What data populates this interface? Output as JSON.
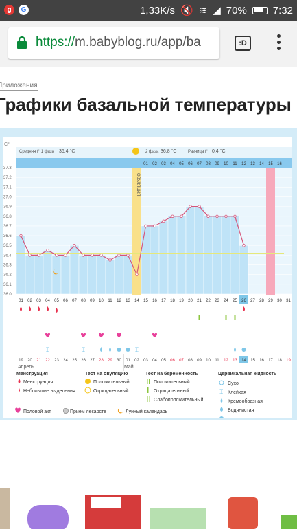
{
  "status_bar": {
    "speed": "1,33K/s",
    "battery": "70%",
    "time": "7:32",
    "apps": [
      "g-icon",
      "google-icon"
    ]
  },
  "browser": {
    "url_protocol": "https://",
    "url_rest": "m.babyblog.ru/app/ba",
    "tab_label": ":D"
  },
  "breadcrumb": "Приложения",
  "page_title": "Графики базальной температуры",
  "chart_data": {
    "type": "line",
    "y_unit": "C°",
    "ylim": [
      36.0,
      37.3
    ],
    "y_ticks": [
      "37.3",
      "37.2",
      "37.1",
      "37.0",
      "36.9",
      "36.8",
      "36.7",
      "36.6",
      "36.5",
      "36.4",
      "36.3",
      "36.2",
      "36.1",
      "36.0"
    ],
    "phase1": {
      "label": "Средняя t° 1 фаза",
      "value": "36.4 °C"
    },
    "phase2": {
      "label": "2 фаза",
      "value": "36.8 °C"
    },
    "diff": {
      "label": "Разница t°",
      "value": "0.4 °C"
    },
    "ovulation_label": "ОВУЛЯЦИЯ",
    "cycle_days": [
      "01",
      "02",
      "03",
      "04",
      "05",
      "06",
      "07",
      "08",
      "09",
      "10",
      "11",
      "12",
      "13",
      "14",
      "15",
      "16",
      "17",
      "18",
      "19",
      "20",
      "21",
      "22",
      "23",
      "24",
      "25",
      "26",
      "27",
      "28",
      "29",
      "30",
      "31"
    ],
    "cycle_days_2": [
      "01",
      "02",
      "03",
      "04",
      "05",
      "06",
      "07",
      "08",
      "09",
      "10",
      "11",
      "12",
      "13",
      "14",
      "15",
      "16"
    ],
    "temperatures": [
      36.6,
      36.4,
      36.4,
      36.45,
      36.4,
      36.4,
      36.5,
      36.4,
      36.4,
      36.4,
      36.35,
      36.4,
      36.4,
      36.2,
      36.7,
      36.7,
      36.75,
      36.8,
      36.8,
      36.9,
      36.9,
      36.8,
      36.8,
      36.8,
      36.8,
      36.5
    ],
    "dates_row": [
      "19",
      "20",
      "21",
      "22",
      "23",
      "24",
      "25",
      "26",
      "27",
      "28",
      "29",
      "30",
      "01",
      "02",
      "03",
      "04",
      "05",
      "06",
      "07",
      "08",
      "09",
      "10",
      "11",
      "12",
      "13",
      "14",
      "15",
      "16",
      "17",
      "18",
      "19"
    ],
    "red_dates": [
      2,
      3,
      9,
      10,
      17,
      18,
      23,
      24,
      30
    ],
    "month_labels": [
      "Апрель",
      "Май"
    ]
  },
  "legend": {
    "menstruation": {
      "title": "Менструация",
      "items": [
        "Менструация",
        "Небольшие выделения"
      ]
    },
    "ovulation_test": {
      "title": "Тест на овуляцию",
      "items": [
        "Положительный",
        "Отрицательный"
      ]
    },
    "pregnancy_test": {
      "title": "Тест на беременность",
      "items": [
        "Положительный",
        "Отрицательный",
        "Слабоположительный"
      ]
    },
    "cervical": {
      "title": "Цервикальная жидкость",
      "items": [
        "Сухо",
        "Клейкая",
        "Кремообразная",
        "Водянистая",
        "Яичный белок"
      ]
    },
    "bottom": [
      "Половой акт",
      "Прием лекарств",
      "Лунный календарь"
    ]
  },
  "colors": {
    "bar": "#bfe3f7",
    "header": "#89c9ee",
    "ovulation": "#f9e08a",
    "today": "#f7a9bb",
    "line": "#d6557a",
    "menses": "#e8324f",
    "heart": "#e8409a",
    "green": "#8cc63f",
    "teal": "#7fc7e8"
  }
}
